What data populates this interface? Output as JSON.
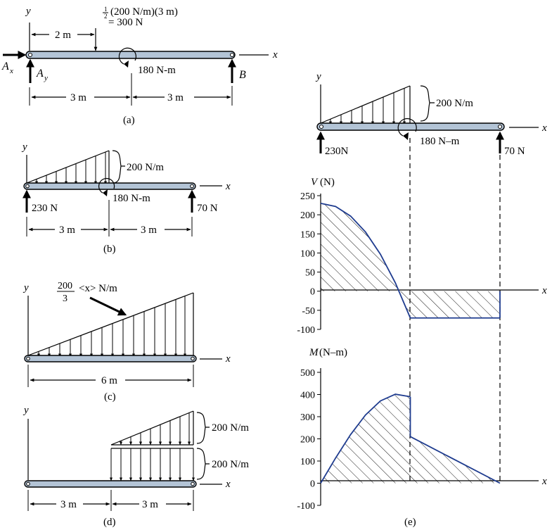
{
  "axes": {
    "x": "x",
    "y": "y"
  },
  "panel_a": {
    "caption": "(a)",
    "force_frac": "1 2",
    "force_expr": "(200 N/m)(3 m)",
    "force_result": "= 300 N",
    "dim_top": "2 m",
    "moment": "180 N-m",
    "ax": "A",
    "ax_sub": "x",
    "ay": "A",
    "ay_sub": "y",
    "b": "B",
    "dim_left": "3 m",
    "dim_right": "3 m"
  },
  "panel_b": {
    "caption": "(b)",
    "load": "200 N/m",
    "moment": "180 N-m",
    "left_reaction": "230 N",
    "right_reaction": "70 N",
    "dim_left": "3 m",
    "dim_right": "3 m"
  },
  "panel_c": {
    "caption": "(c)",
    "load_num": "200",
    "load_den": "3",
    "load_rest": "<x> N/m",
    "dim": "6 m"
  },
  "panel_d": {
    "caption": "(d)",
    "load_top": "200 N/m",
    "load_bottom": "200 N/m",
    "dim_left": "3 m",
    "dim_right": "3 m"
  },
  "panel_e": {
    "caption": "(e)",
    "load": "200 N/m",
    "moment": "180 N–m",
    "left_reaction": "230N",
    "right_reaction": "70 N",
    "shear_label": "V",
    "shear_unit": "(N)",
    "moment_label": "M",
    "moment_unit": "(N–m)",
    "shear_ticks": [
      "250",
      "200",
      "150",
      "100",
      "50",
      "0",
      "-50",
      "-100"
    ],
    "moment_ticks": [
      "500",
      "400",
      "300",
      "200",
      "100",
      "0",
      "-100"
    ]
  },
  "chart_data": [
    {
      "type": "area",
      "title": "",
      "xlabel": "x",
      "ylabel": "V (N)",
      "x_range_m": [
        0,
        6
      ],
      "ylim": [
        -100,
        250
      ],
      "series": [
        {
          "x": [
            0,
            0.5,
            1,
            1.5,
            2,
            2.5,
            3
          ],
          "values": [
            230,
            221.7,
            196.7,
            155,
            96.7,
            21.7,
            -70
          ]
        },
        {
          "x": [
            3,
            6
          ],
          "values": [
            -70,
            -70
          ]
        }
      ]
    },
    {
      "type": "area",
      "title": "",
      "xlabel": "x",
      "ylabel": "M (N–m)",
      "x_range_m": [
        0,
        6
      ],
      "ylim": [
        -100,
        500
      ],
      "series": [
        {
          "x": [
            0,
            0.5,
            1,
            1.5,
            2,
            2.5,
            3
          ],
          "values": [
            0,
            113.6,
            218.9,
            307.5,
            371.1,
            401.4,
            390
          ]
        },
        {
          "x": [
            3,
            6
          ],
          "values": [
            210,
            0
          ]
        }
      ]
    }
  ]
}
